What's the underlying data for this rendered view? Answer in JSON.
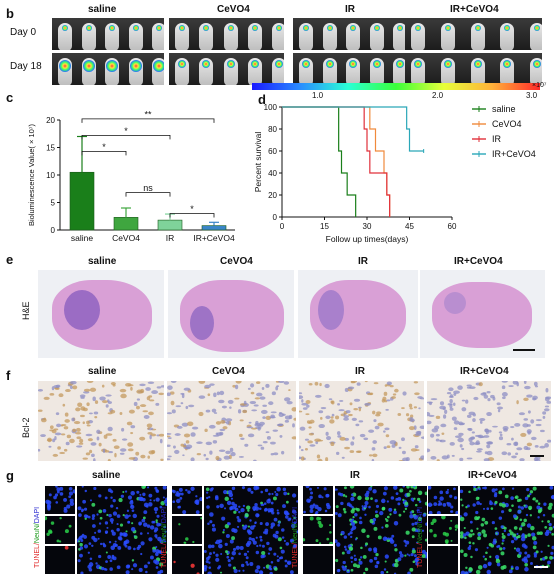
{
  "panels": {
    "b": "b",
    "c": "c",
    "d": "d",
    "e": "e",
    "f": "f",
    "g": "g"
  },
  "groups": [
    "saline",
    "CeVO4",
    "IR",
    "IR+CeVO4"
  ],
  "panel_b": {
    "rows": [
      "Day 0",
      "Day 18"
    ],
    "colorbar": {
      "ticks": [
        "1.0",
        "2.0",
        "3.0"
      ],
      "unit": "×10⁷"
    }
  },
  "panel_e": {
    "row_label": "H&E"
  },
  "panel_f": {
    "row_label": "Bcl-2"
  },
  "panel_g": {
    "stain_tunel": "TUNEL/",
    "stain_neun": "NeuN/",
    "stain_dapi": "DAPI"
  },
  "colors": {
    "saline": "#1a7f1a",
    "cevo4": "#f08a3c",
    "ir": "#e0303a",
    "ir_cevo4": "#2aa7b8"
  },
  "chart_data": [
    {
      "type": "bar",
      "categories": [
        "saline",
        "CeVO4",
        "IR",
        "IR+CeVO4"
      ],
      "values": [
        10.5,
        2.3,
        1.8,
        0.8
      ],
      "errors": [
        6.5,
        1.7,
        1.1,
        0.6
      ],
      "ylabel": "Bioluminescence Value( × 10⁷)",
      "yticks": [
        "0",
        "5",
        "10",
        "15",
        "20"
      ],
      "ylim": [
        0,
        20
      ],
      "significance": [
        {
          "from": "saline",
          "to": "CeVO4",
          "label": "*"
        },
        {
          "from": "saline",
          "to": "IR",
          "label": "*"
        },
        {
          "from": "saline",
          "to": "IR+CeVO4",
          "label": "**"
        },
        {
          "from": "CeVO4",
          "to": "IR",
          "label": "ns"
        },
        {
          "from": "IR",
          "to": "IR+CeVO4",
          "label": "*"
        }
      ]
    },
    {
      "type": "line",
      "ylabel": "Percent survival",
      "xlabel": "Follow up times(days)",
      "xlim": [
        0,
        60
      ],
      "ylim": [
        0,
        100
      ],
      "xticks": [
        "0",
        "15",
        "30",
        "45",
        "60"
      ],
      "yticks": [
        "0",
        "20",
        "40",
        "60",
        "80",
        "100"
      ],
      "series": [
        {
          "name": "saline",
          "steps": [
            [
              0,
              100
            ],
            [
              20,
              100
            ],
            [
              20,
              60
            ],
            [
              21,
              60
            ],
            [
              21,
              40
            ],
            [
              23,
              40
            ],
            [
              23,
              20
            ],
            [
              26,
              20
            ],
            [
              26,
              0
            ]
          ]
        },
        {
          "name": "CeVO4",
          "steps": [
            [
              0,
              100
            ],
            [
              31,
              100
            ],
            [
              31,
              80
            ],
            [
              33,
              80
            ],
            [
              33,
              60
            ],
            [
              36,
              60
            ],
            [
              36,
              40
            ],
            [
              37,
              40
            ],
            [
              37,
              20
            ],
            [
              38,
              20
            ],
            [
              38,
              0
            ]
          ]
        },
        {
          "name": "IR",
          "steps": [
            [
              0,
              100
            ],
            [
              29,
              100
            ],
            [
              29,
              80
            ],
            [
              30,
              80
            ],
            [
              30,
              60
            ],
            [
              31,
              60
            ],
            [
              31,
              40
            ],
            [
              37,
              40
            ],
            [
              37,
              20
            ],
            [
              38,
              20
            ],
            [
              38,
              0
            ]
          ]
        },
        {
          "name": "IR+CeVO4",
          "steps": [
            [
              0,
              100
            ],
            [
              44,
              100
            ],
            [
              44,
              80
            ],
            [
              45,
              80
            ],
            [
              45,
              60
            ],
            [
              50,
              60
            ]
          ]
        }
      ]
    }
  ]
}
